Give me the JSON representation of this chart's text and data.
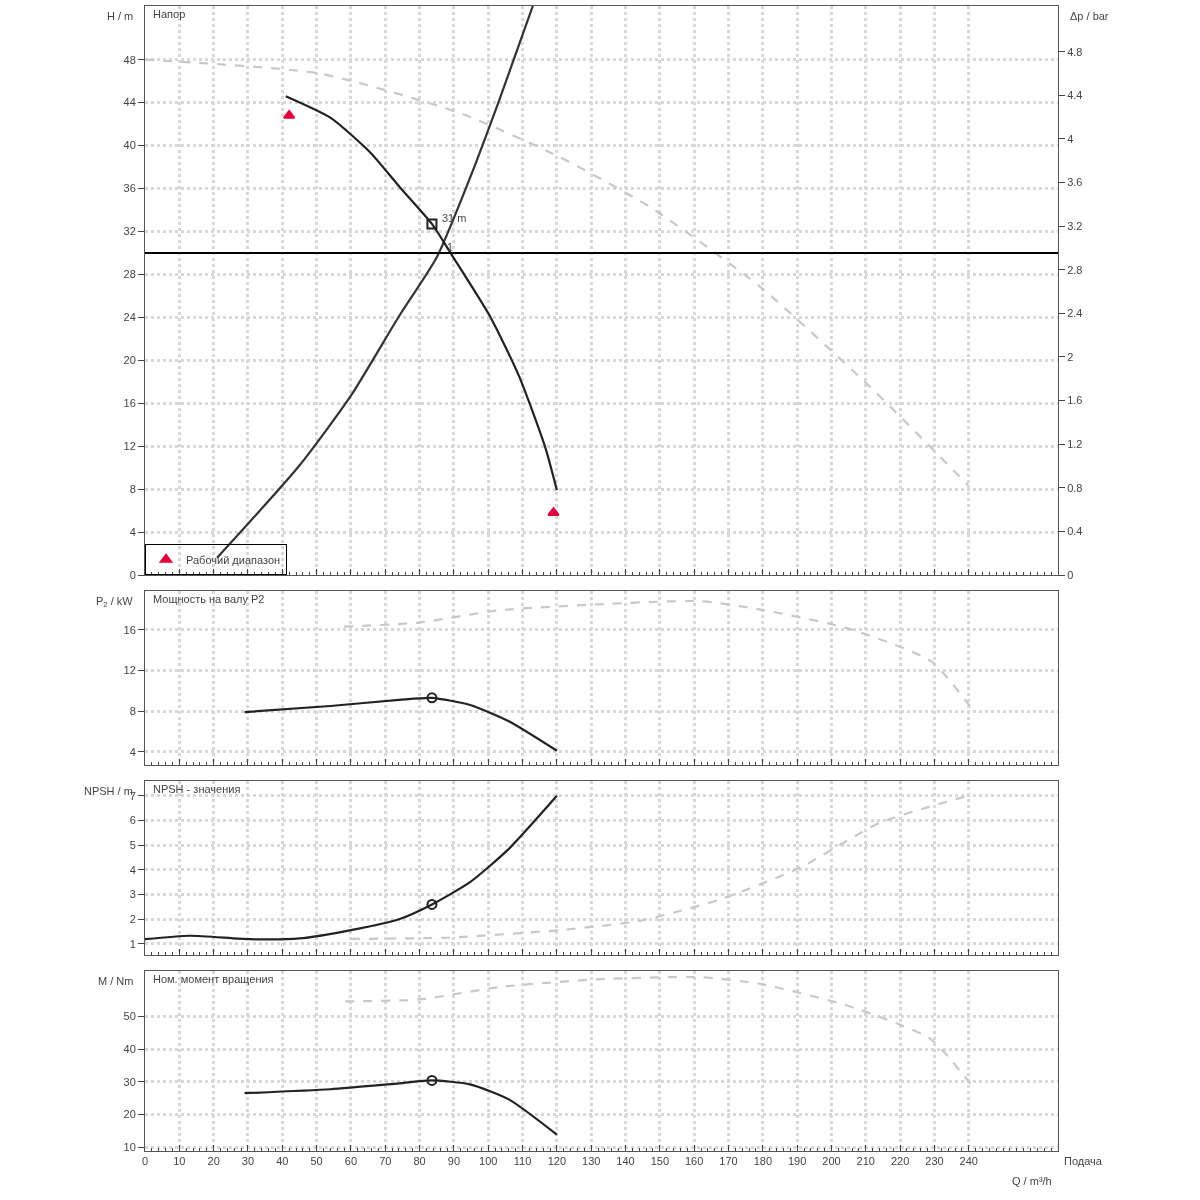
{
  "chart_data": [
    {
      "type": "line",
      "title": "Напор",
      "ylabel": "H / m",
      "y2label": "Δp / bar",
      "xlim": [
        0,
        266
      ],
      "xticks": [
        0,
        10,
        20,
        30,
        40,
        50,
        60,
        70,
        80,
        90,
        100,
        110,
        120,
        130,
        140,
        150,
        160,
        170,
        180,
        190,
        200,
        210,
        220,
        230,
        240
      ],
      "ylim": [
        0,
        53
      ],
      "yticks": [
        0,
        4,
        8,
        12,
        16,
        20,
        24,
        28,
        32,
        36,
        40,
        44,
        48
      ],
      "y2lim": [
        0,
        5.22
      ],
      "y2ticks": [
        0,
        0.4,
        0.8,
        1.2,
        1.6,
        2,
        2.4,
        2.8,
        3.2,
        3.6,
        4,
        4.4,
        4.8
      ],
      "grid": true,
      "tick_labels": "y",
      "legend": "bottom left",
      "ref_lines": [
        {
          "axis": "y",
          "value": 30,
          "color": "#000000"
        }
      ],
      "annotations": [
        {
          "text": "31 m",
          "x": 83.6,
          "y": 32.7
        },
        {
          "text": "1",
          "x": 85,
          "y": 30
        }
      ],
      "series": [
        {
          "type": "line",
          "color": "#c8c8c8",
          "line_style": "dashed",
          "x": [
            0,
            51,
            92,
            121,
            147,
            179,
            211,
            240
          ],
          "values": [
            48,
            46.7,
            43,
            38.9,
            34.3,
            26.9,
            17.6,
            8.3
          ]
        },
        {
          "type": "line",
          "color": "#333333",
          "line_style": "solid",
          "x": [
            21,
            45,
            60,
            74,
            85,
            94.7,
            103.4,
            113
          ],
          "values": [
            1.6,
            10.2,
            16.7,
            24.1,
            29.6,
            37,
            44.4,
            53
          ]
        },
        {
          "type": "line",
          "color": "#222222",
          "line_style": "solid",
          "x": [
            41,
            54,
            65.5,
            74.3,
            83.6,
            89.4,
            100.5,
            109,
            116.5,
            120
          ],
          "values": [
            44.6,
            42.6,
            39.4,
            36.1,
            32.7,
            29.8,
            24.1,
            18.5,
            12,
            7.9
          ]
        },
        {
          "type": "scatter",
          "color": "#222222",
          "marker": "square",
          "x": [
            83.6
          ],
          "values": [
            32.7
          ]
        },
        {
          "type": "scatter",
          "name": "Рабочий диапазон",
          "color": "#e0003c",
          "marker": "triangle",
          "x": [
            42,
            119
          ],
          "values": [
            42.8,
            5.8
          ]
        }
      ]
    },
    {
      "type": "line",
      "title": "Мощность на валу P2",
      "ylabel": "P$_{2}$ / kW",
      "xlim": [
        0,
        266
      ],
      "xticks": [
        0,
        10,
        20,
        30,
        40,
        50,
        60,
        70,
        80,
        90,
        100,
        110,
        120,
        130,
        140,
        150,
        160,
        170,
        180,
        190,
        200,
        210,
        220,
        230,
        240
      ],
      "ylim": [
        2.7,
        19.8
      ],
      "yticks": [
        4,
        8,
        12,
        16
      ],
      "grid": true,
      "tick_labels": "y",
      "series": [
        {
          "type": "line",
          "color": "#c8c8c8",
          "line_style": "dashed",
          "x": [
            58,
            80,
            103,
            132.5,
            161.7,
            179,
            205,
            229,
            241
          ],
          "values": [
            16.3,
            16.7,
            17.9,
            18.5,
            18.8,
            18,
            16.1,
            12.9,
            8.2
          ]
        },
        {
          "type": "line",
          "color": "#222222",
          "line_style": "solid",
          "x": [
            29,
            54,
            74,
            83.6,
            94.7,
            106,
            120
          ],
          "values": [
            7.9,
            8.5,
            9.1,
            9.3,
            8.6,
            7,
            4.1
          ]
        },
        {
          "type": "scatter",
          "color": "#222222",
          "marker": "circle",
          "x": [
            83.6
          ],
          "values": [
            9.3
          ]
        }
      ]
    },
    {
      "type": "line",
      "title": "NPSH - значения",
      "ylabel": "NPSH / m",
      "xlim": [
        0,
        266
      ],
      "xticks": [
        0,
        10,
        20,
        30,
        40,
        50,
        60,
        70,
        80,
        90,
        100,
        110,
        120,
        130,
        140,
        150,
        160,
        170,
        180,
        190,
        200,
        210,
        220,
        230,
        240
      ],
      "ylim": [
        0.55,
        7.6
      ],
      "yticks": [
        1,
        2,
        3,
        4,
        5,
        6,
        7
      ],
      "grid": true,
      "tick_labels": "y",
      "series": [
        {
          "type": "line",
          "color": "#c8c8c8",
          "line_style": "dashed",
          "x": [
            60,
            89,
            121,
            144,
            167.5,
            191,
            214,
            241
          ],
          "values": [
            1.2,
            1.26,
            1.56,
            1.93,
            2.8,
            4.1,
            5.9,
            7.05
          ]
        },
        {
          "type": "line",
          "color": "#222222",
          "line_style": "solid",
          "x": [
            0,
            13,
            30.6,
            45,
            60,
            74,
            83.6,
            94.7,
            106,
            120
          ],
          "values": [
            1.19,
            1.33,
            1.19,
            1.22,
            1.56,
            2,
            2.6,
            3.5,
            4.85,
            7
          ]
        },
        {
          "type": "scatter",
          "color": "#222222",
          "marker": "circle",
          "x": [
            83.6
          ],
          "values": [
            2.6
          ]
        }
      ]
    },
    {
      "type": "line",
      "title": "Ном. момент вращения",
      "ylabel": "M / Nm",
      "xlabel": "Q / m³/h",
      "xlim": [
        0,
        266
      ],
      "xticks": [
        0,
        10,
        20,
        30,
        40,
        50,
        60,
        70,
        80,
        90,
        100,
        110,
        120,
        130,
        140,
        150,
        160,
        170,
        180,
        190,
        200,
        210,
        220,
        230,
        240
      ],
      "ylim": [
        8.8,
        63.9
      ],
      "yticks": [
        10,
        20,
        30,
        40,
        50
      ],
      "grid": true,
      "annotations": [
        "Подача"
      ],
      "series": [
        {
          "type": "line",
          "color": "#c8c8c8",
          "line_style": "dashed",
          "x": [
            58.3,
            80,
            103.4,
            132.5,
            161.7,
            179,
            205,
            229,
            241
          ],
          "values": [
            54.6,
            55.2,
            59,
            61.4,
            62,
            60,
            53.2,
            43,
            28.6
          ]
        },
        {
          "type": "line",
          "color": "#222222",
          "line_style": "solid",
          "x": [
            29,
            54,
            74,
            83.6,
            94.7,
            106,
            120
          ],
          "values": [
            26.5,
            27.7,
            29.5,
            30.4,
            29.2,
            24.6,
            13.8
          ]
        },
        {
          "type": "scatter",
          "color": "#222222",
          "marker": "circle",
          "x": [
            83.6
          ],
          "values": [
            30.4
          ]
        }
      ]
    }
  ]
}
